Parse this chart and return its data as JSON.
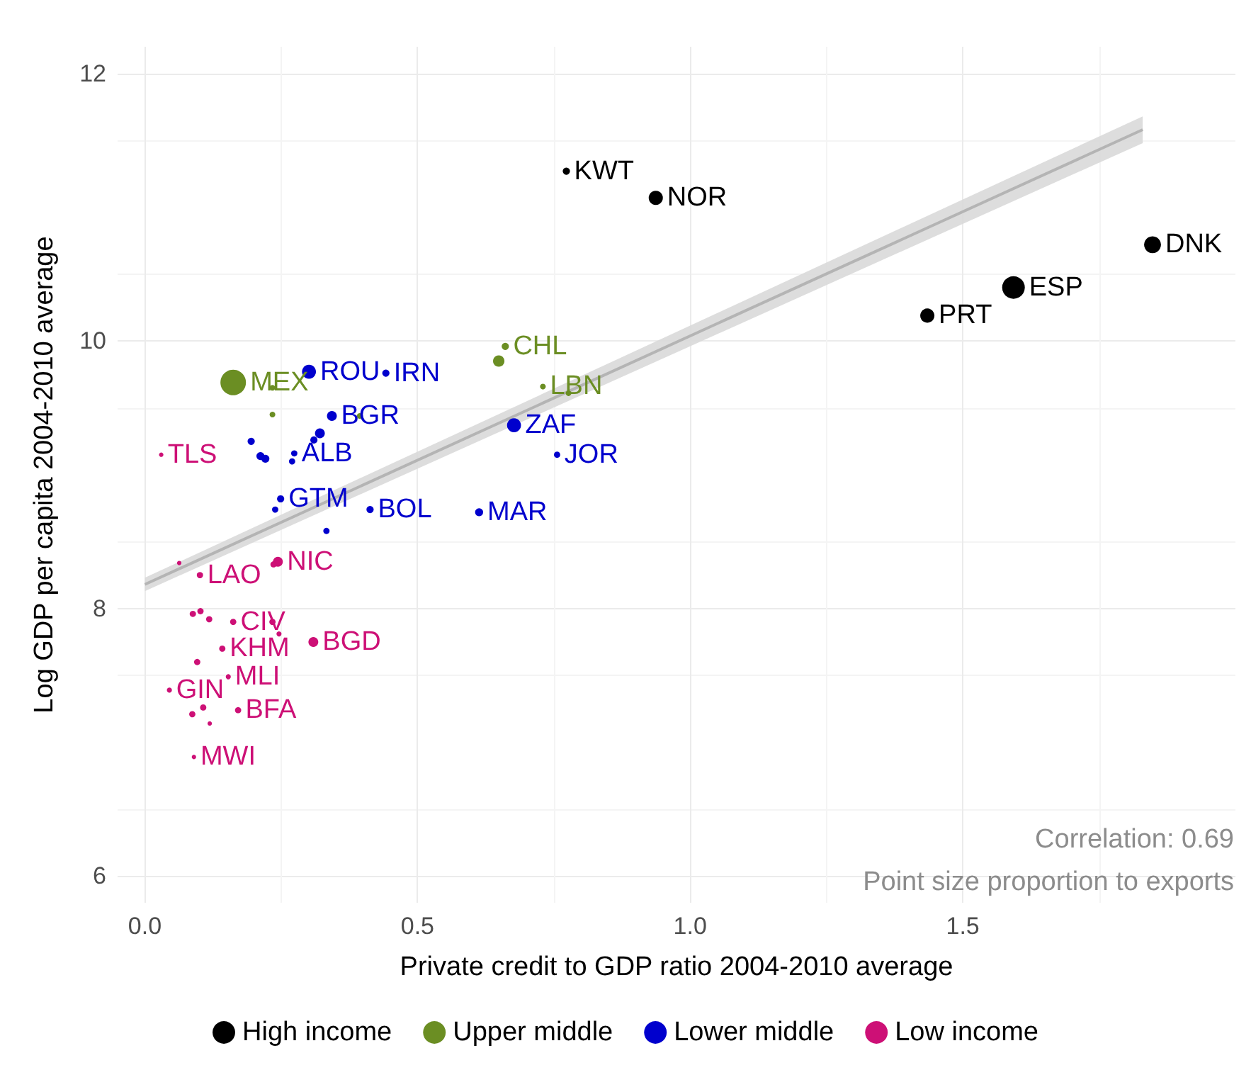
{
  "chart_data": {
    "type": "bubble",
    "xlabel": "Private credit to GDP ratio 2004-2010 average",
    "ylabel": "Log GDP per capita 2004-2010 average",
    "xlim": [
      -0.05,
      2.0
    ],
    "xticks": [
      {
        "value": 0,
        "label": "0.0"
      },
      {
        "value": 0.5,
        "label": "0.5"
      },
      {
        "value": 1,
        "label": "1.0"
      },
      {
        "value": 1.5,
        "label": "1.5"
      }
    ],
    "ylim": [
      5.8,
      12.2
    ],
    "yticks": [
      6,
      8,
      10,
      12
    ],
    "grid": true,
    "legend": "bottom",
    "annotations": [
      "Correlation: 0.69",
      "Point size proportion to exports"
    ],
    "series": [
      {
        "name": "High income",
        "color": "#000000",
        "x": [
          0.773,
          0.937,
          1.848,
          1.593,
          1.435
        ],
        "values": [
          11.27,
          11.07,
          10.72,
          10.4,
          10.19
        ],
        "sizes": [
          0.08,
          0.31,
          0.44,
          0.79,
          0.31
        ],
        "marker": "circle",
        "value_labels": [
          "KWT",
          "NOR",
          "DNK",
          "ESP",
          "PRT"
        ]
      },
      {
        "name": "Upper middle",
        "color": "#6b8e23",
        "x": [
          0.162,
          0.234,
          0.234,
          0.394,
          0.661,
          0.649,
          0.73,
          0.777
        ],
        "values": [
          9.69,
          9.65,
          9.45,
          9.44,
          9.96,
          9.85,
          9.66,
          9.61
        ],
        "sizes": [
          1,
          0.05,
          0.05,
          0.05,
          0.08,
          0.2,
          0.05,
          0.05
        ],
        "marker": "circle",
        "value_labels": [
          "MEX",
          null,
          null,
          null,
          "CHL",
          null,
          "LBN",
          null
        ]
      },
      {
        "name": "Lower middle",
        "color": "#0000cd",
        "x": [
          0.301,
          0.442,
          0.343,
          0.321,
          0.31,
          0.274,
          0.27,
          0.195,
          0.212,
          0.221,
          0.249,
          0.239,
          0.413,
          0.333,
          0.677,
          0.756,
          0.613
        ],
        "values": [
          9.77,
          9.76,
          9.44,
          9.31,
          9.26,
          9.16,
          9.1,
          9.25,
          9.14,
          9.12,
          8.82,
          8.74,
          8.74,
          8.58,
          9.37,
          9.15,
          8.72
        ],
        "sizes": [
          0.3,
          0.08,
          0.15,
          0.15,
          0.08,
          0.06,
          0.06,
          0.08,
          0.1,
          0.1,
          0.08,
          0.06,
          0.08,
          0.06,
          0.3,
          0.06,
          0.1
        ],
        "marker": "circle",
        "value_labels": [
          "ROU",
          "IRN",
          "BGR",
          null,
          null,
          "ALB",
          null,
          null,
          null,
          null,
          "GTM",
          null,
          "BOL",
          null,
          "ZAF",
          "JOR",
          "MAR"
        ]
      },
      {
        "name": "Low income",
        "color": "#cd1076",
        "x": [
          0.03,
          0.063,
          0.244,
          0.236,
          0.101,
          0.088,
          0.102,
          0.118,
          0.162,
          0.234,
          0.246,
          0.309,
          0.142,
          0.096,
          0.153,
          0.045,
          0.087,
          0.107,
          0.119,
          0.171,
          0.09
        ],
        "values": [
          9.15,
          8.34,
          8.35,
          8.33,
          8.25,
          7.96,
          7.98,
          7.92,
          7.9,
          7.9,
          7.81,
          7.75,
          7.7,
          7.6,
          7.49,
          7.39,
          7.21,
          7.26,
          7.14,
          7.24,
          6.89
        ],
        "sizes": [
          0.03,
          0.03,
          0.15,
          0.06,
          0.06,
          0.06,
          0.06,
          0.06,
          0.06,
          0.06,
          0.04,
          0.15,
          0.06,
          0.06,
          0.04,
          0.04,
          0.06,
          0.06,
          0.03,
          0.06,
          0.03
        ],
        "marker": "circle",
        "value_labels": [
          "TLS",
          null,
          "NIC",
          null,
          "LAO",
          null,
          null,
          null,
          "CIV",
          null,
          null,
          "BGD",
          "KHM",
          null,
          "MLI",
          "GIN",
          null,
          null,
          null,
          "BFA",
          "MWI"
        ]
      },
      {
        "type": "line",
        "marker": "none",
        "color": "#b4b4b4",
        "x": [
          0,
          1.83
        ],
        "values": [
          8.18,
          11.58
        ],
        "lower": [
          8.13,
          11.48
        ],
        "upper": [
          8.23,
          11.68
        ]
      }
    ]
  }
}
